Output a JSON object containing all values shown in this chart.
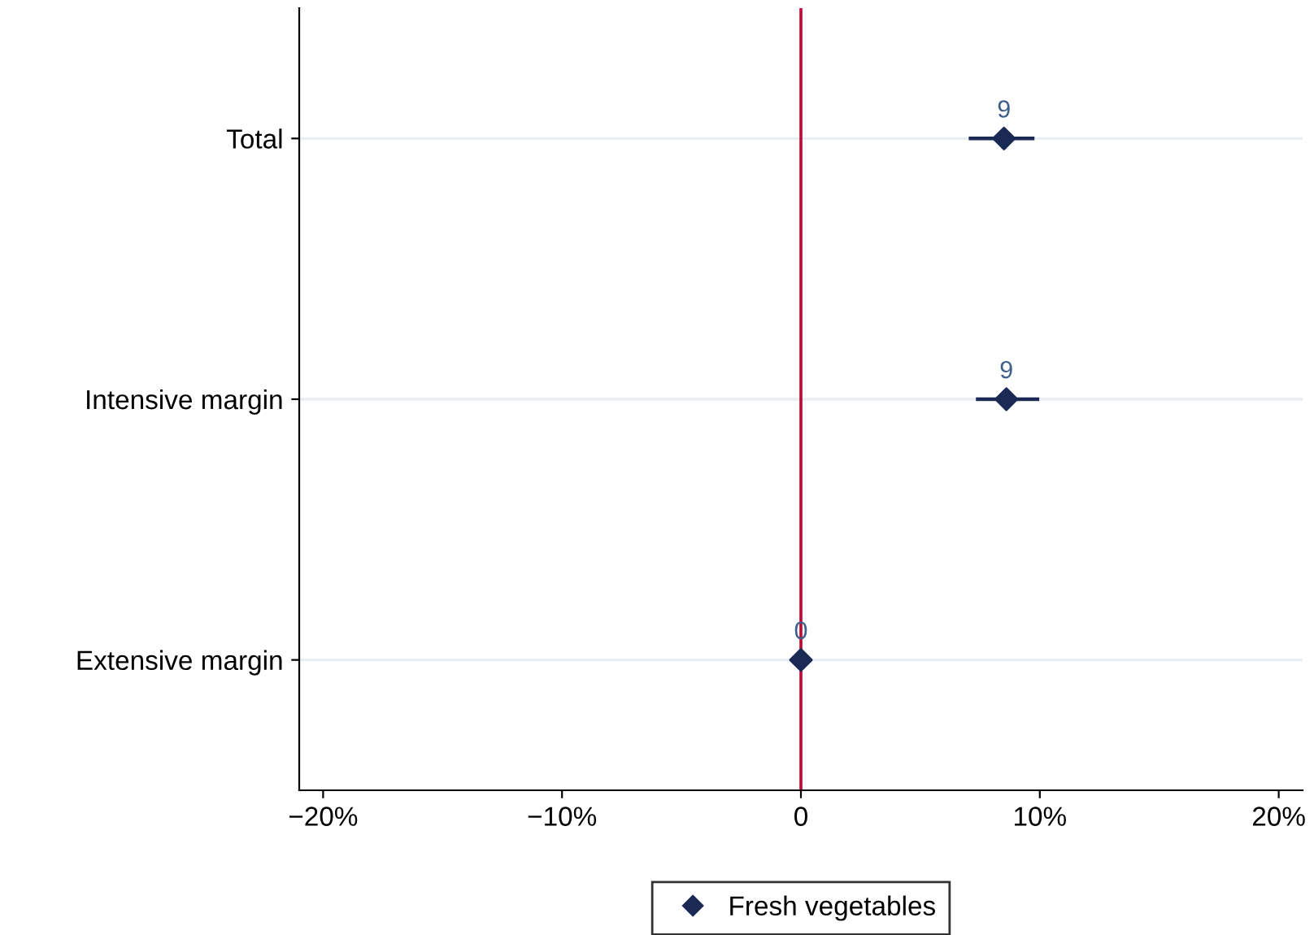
{
  "chart_data": {
    "type": "scatter",
    "orientation": "horizontal",
    "categories": [
      "Total",
      "Intensive margin",
      "Extensive margin"
    ],
    "series": [
      {
        "name": "Fresh vegetables",
        "color": "#1a2a55",
        "values": [
          8.5,
          8.6,
          0
        ],
        "errors": [
          [
            7.1,
            9.7
          ],
          [
            7.4,
            9.9
          ],
          null
        ],
        "value_labels": [
          "9",
          "9",
          "0"
        ]
      }
    ],
    "xlim": [
      -21,
      21
    ],
    "xticks": [
      {
        "value": -20,
        "label": "−20%"
      },
      {
        "value": -10,
        "label": "−10%"
      },
      0,
      {
        "value": 10,
        "label": "10%"
      },
      {
        "value": 20,
        "label": "20%"
      }
    ],
    "ref_lines": [
      {
        "axis": "x",
        "value": 0,
        "color": "#c10534"
      }
    ],
    "grid": "y",
    "legend": "bottom",
    "marker": "diamond"
  }
}
